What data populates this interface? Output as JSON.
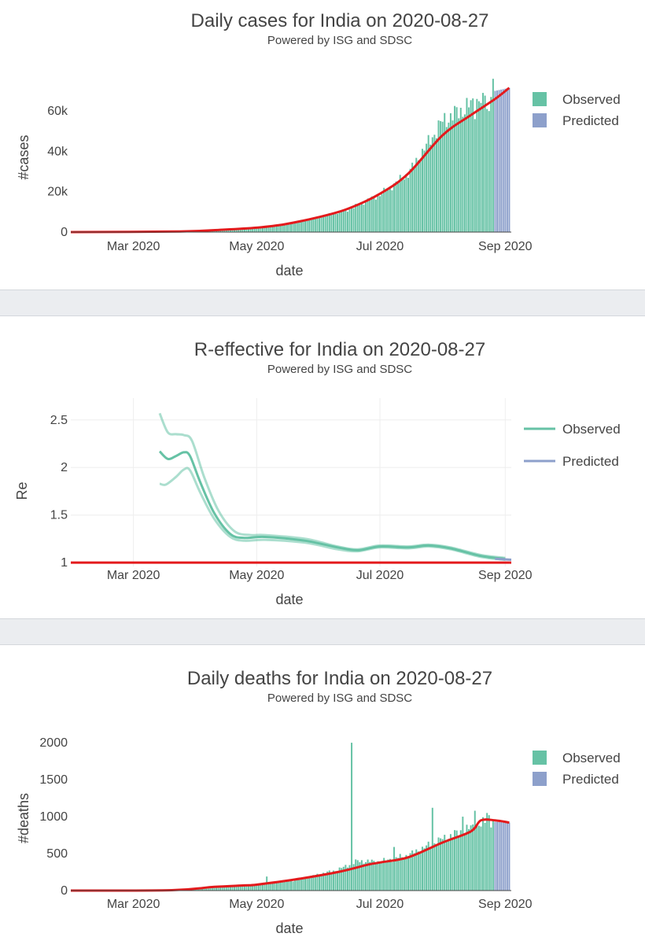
{
  "colors": {
    "observed": "#66c2a5",
    "predicted": "#8da0cb",
    "trend": "#e31a1c",
    "separator": "#ebedf0"
  },
  "legend": {
    "observed": "Observed",
    "predicted": "Predicted"
  },
  "chart_data": [
    {
      "id": "cases",
      "type": "bar",
      "title": "Daily cases for India on 2020-08-27",
      "subtitle": "Powered by ISG and SDSC",
      "xlabel": "date",
      "ylabel": "#cases",
      "x_ticks": [
        "Mar 2020",
        "May 2020",
        "Jul 2020",
        "Sep 2020"
      ],
      "x_tick_dates": [
        "2020-03-01",
        "2020-05-01",
        "2020-07-01",
        "2020-09-01"
      ],
      "x_range": [
        "2020-01-30",
        "2020-09-04"
      ],
      "ylim": [
        0,
        78000
      ],
      "y_ticks": [
        0,
        20000,
        40000,
        60000
      ],
      "y_tick_labels": [
        "0",
        "20k",
        "40k",
        "60k"
      ],
      "grid": false,
      "legend_position": "top-right",
      "observed_anchors": [
        [
          "2020-01-30",
          0
        ],
        [
          "2020-03-01",
          0
        ],
        [
          "2020-03-24",
          500
        ],
        [
          "2020-04-15",
          1000
        ],
        [
          "2020-05-01",
          2200
        ],
        [
          "2020-05-15",
          3800
        ],
        [
          "2020-06-01",
          7500
        ],
        [
          "2020-06-15",
          11000
        ],
        [
          "2020-07-01",
          18500
        ],
        [
          "2020-07-15",
          29000
        ],
        [
          "2020-08-01",
          55000
        ],
        [
          "2020-08-15",
          63000
        ],
        [
          "2020-08-26",
          70000
        ]
      ],
      "observed_spikes": [
        [
          "2020-08-17",
          56000
        ],
        [
          "2020-08-18",
          66000
        ],
        [
          "2020-08-21",
          69000
        ],
        [
          "2020-08-23",
          61000
        ],
        [
          "2020-08-24",
          60000
        ],
        [
          "2020-08-25",
          67000
        ],
        [
          "2020-08-26",
          76000
        ]
      ],
      "predicted_anchors": [
        [
          "2020-08-27",
          70000
        ],
        [
          "2020-09-03",
          71500
        ]
      ],
      "trend": [
        [
          "2020-01-30",
          0
        ],
        [
          "2020-03-24",
          300
        ],
        [
          "2020-04-15",
          1200
        ],
        [
          "2020-05-01",
          2200
        ],
        [
          "2020-05-15",
          3900
        ],
        [
          "2020-06-01",
          7500
        ],
        [
          "2020-06-15",
          11500
        ],
        [
          "2020-07-01",
          19000
        ],
        [
          "2020-07-15",
          29000
        ],
        [
          "2020-08-01",
          48000
        ],
        [
          "2020-08-15",
          58000
        ],
        [
          "2020-08-27",
          66000
        ],
        [
          "2020-09-03",
          71500
        ]
      ]
    },
    {
      "id": "re",
      "type": "line",
      "title": "R-effective for India on 2020-08-27",
      "subtitle": "Powered by ISG and SDSC",
      "xlabel": "date",
      "ylabel": "Re",
      "x_ticks": [
        "Mar 2020",
        "May 2020",
        "Jul 2020",
        "Sep 2020"
      ],
      "x_tick_dates": [
        "2020-03-01",
        "2020-05-01",
        "2020-07-01",
        "2020-09-01"
      ],
      "x_range": [
        "2020-01-30",
        "2020-09-04"
      ],
      "ylim": [
        0.96,
        2.68
      ],
      "y_ticks": [
        1,
        1.5,
        2,
        2.5
      ],
      "y_tick_labels": [
        "1",
        "1.5",
        "2",
        "2.5"
      ],
      "grid": true,
      "legend_position": "top-right",
      "re_mid": [
        [
          "2020-03-14",
          2.17
        ],
        [
          "2020-03-18",
          2.09
        ],
        [
          "2020-03-22",
          2.12
        ],
        [
          "2020-03-26",
          2.16
        ],
        [
          "2020-03-29",
          2.12
        ],
        [
          "2020-04-03",
          1.85
        ],
        [
          "2020-04-10",
          1.52
        ],
        [
          "2020-04-18",
          1.3
        ],
        [
          "2020-04-25",
          1.26
        ],
        [
          "2020-05-05",
          1.27
        ],
        [
          "2020-05-25",
          1.23
        ],
        [
          "2020-06-10",
          1.16
        ],
        [
          "2020-06-20",
          1.13
        ],
        [
          "2020-07-01",
          1.17
        ],
        [
          "2020-07-15",
          1.16
        ],
        [
          "2020-07-25",
          1.18
        ],
        [
          "2020-08-05",
          1.15
        ],
        [
          "2020-08-20",
          1.07
        ],
        [
          "2020-09-01",
          1.04
        ]
      ],
      "re_upper": [
        [
          "2020-03-14",
          2.57
        ],
        [
          "2020-03-18",
          2.37
        ],
        [
          "2020-03-22",
          2.35
        ],
        [
          "2020-03-26",
          2.34
        ],
        [
          "2020-03-30",
          2.28
        ],
        [
          "2020-04-05",
          1.9
        ],
        [
          "2020-04-12",
          1.55
        ],
        [
          "2020-04-20",
          1.33
        ],
        [
          "2020-04-28",
          1.29
        ],
        [
          "2020-05-05",
          1.29
        ],
        [
          "2020-05-25",
          1.25
        ],
        [
          "2020-06-10",
          1.17
        ],
        [
          "2020-06-20",
          1.14
        ],
        [
          "2020-07-01",
          1.18
        ],
        [
          "2020-07-15",
          1.17
        ],
        [
          "2020-07-25",
          1.19
        ],
        [
          "2020-08-05",
          1.16
        ],
        [
          "2020-08-20",
          1.08
        ],
        [
          "2020-09-01",
          1.05
        ]
      ],
      "re_lower": [
        [
          "2020-03-14",
          1.83
        ],
        [
          "2020-03-17",
          1.82
        ],
        [
          "2020-03-22",
          1.9
        ],
        [
          "2020-03-26",
          1.98
        ],
        [
          "2020-03-29",
          1.97
        ],
        [
          "2020-04-03",
          1.74
        ],
        [
          "2020-04-10",
          1.46
        ],
        [
          "2020-04-18",
          1.27
        ],
        [
          "2020-04-25",
          1.23
        ],
        [
          "2020-05-05",
          1.24
        ],
        [
          "2020-05-25",
          1.21
        ],
        [
          "2020-06-10",
          1.14
        ],
        [
          "2020-06-20",
          1.12
        ],
        [
          "2020-07-01",
          1.16
        ],
        [
          "2020-07-15",
          1.15
        ],
        [
          "2020-07-25",
          1.17
        ],
        [
          "2020-08-05",
          1.14
        ],
        [
          "2020-08-20",
          1.06
        ],
        [
          "2020-09-01",
          1.03
        ]
      ],
      "re_predicted": [
        [
          "2020-08-27",
          1.04
        ],
        [
          "2020-09-04",
          1.03
        ]
      ],
      "threshold": 1
    },
    {
      "id": "deaths",
      "type": "bar",
      "title": "Daily deaths for India on 2020-08-27",
      "subtitle": "Powered by ISG and SDSC",
      "xlabel": "date",
      "ylabel": "#deaths",
      "x_ticks": [
        "Mar 2020",
        "May 2020",
        "Jul 2020",
        "Sep 2020"
      ],
      "x_tick_dates": [
        "2020-03-01",
        "2020-05-01",
        "2020-07-01",
        "2020-09-01"
      ],
      "x_range": [
        "2020-01-30",
        "2020-09-04"
      ],
      "ylim": [
        0,
        2150
      ],
      "y_ticks": [
        0,
        500,
        1000,
        1500,
        2000
      ],
      "y_tick_labels": [
        "0",
        "500",
        "1000",
        "1500",
        "2000"
      ],
      "grid": false,
      "legend_position": "top-right",
      "observed_anchors": [
        [
          "2020-01-30",
          0
        ],
        [
          "2020-03-10",
          0
        ],
        [
          "2020-03-25",
          5
        ],
        [
          "2020-04-10",
          40
        ],
        [
          "2020-05-01",
          80
        ],
        [
          "2020-05-20",
          140
        ],
        [
          "2020-06-10",
          280
        ],
        [
          "2020-06-20",
          400
        ],
        [
          "2020-07-01",
          390
        ],
        [
          "2020-07-15",
          480
        ],
        [
          "2020-08-01",
          700
        ],
        [
          "2020-08-15",
          850
        ],
        [
          "2020-08-26",
          950
        ]
      ],
      "observed_spikes": [
        [
          "2020-05-06",
          190
        ],
        [
          "2020-06-17",
          2000
        ],
        [
          "2020-07-08",
          590
        ],
        [
          "2020-07-27",
          1120
        ],
        [
          "2020-08-11",
          1000
        ],
        [
          "2020-08-17",
          1080
        ],
        [
          "2020-08-23",
          1050
        ],
        [
          "2020-08-24",
          1020
        ]
      ],
      "predicted_anchors": [
        [
          "2020-08-27",
          930
        ],
        [
          "2020-09-03",
          920
        ]
      ],
      "trend": [
        [
          "2020-01-30",
          0
        ],
        [
          "2020-03-20",
          5
        ],
        [
          "2020-04-10",
          50
        ],
        [
          "2020-04-25",
          70
        ],
        [
          "2020-05-01",
          80
        ],
        [
          "2020-05-20",
          150
        ],
        [
          "2020-06-10",
          250
        ],
        [
          "2020-06-25",
          350
        ],
        [
          "2020-07-01",
          380
        ],
        [
          "2020-07-15",
          450
        ],
        [
          "2020-08-01",
          650
        ],
        [
          "2020-08-15",
          800
        ],
        [
          "2020-08-20",
          950
        ],
        [
          "2020-08-27",
          950
        ],
        [
          "2020-09-03",
          920
        ]
      ]
    }
  ]
}
